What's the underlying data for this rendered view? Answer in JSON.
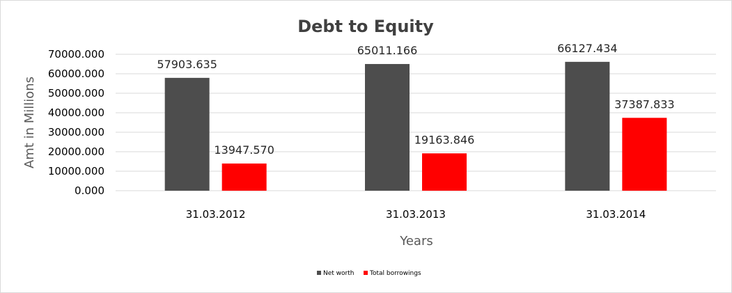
{
  "chart_data": {
    "type": "bar",
    "title": "Debt to Equity",
    "xlabel": "Years",
    "ylabel": "Amt in Millions",
    "categories": [
      "31.03.2012",
      "31.03.2013",
      "31.03.2014"
    ],
    "series": [
      {
        "name": "Net worth",
        "color": "#4d4d4d",
        "values": [
          57903.635,
          65011.166,
          66127.434
        ],
        "labels": [
          "57903.635",
          "65011.166",
          "66127.434"
        ]
      },
      {
        "name": "Total borrowings",
        "color": "#ff0000",
        "values": [
          13947.57,
          19163.846,
          37387.833
        ],
        "labels": [
          "13947.570",
          "19163.846",
          "37387.833"
        ]
      }
    ],
    "ylim": [
      0,
      70000
    ],
    "yticks": [
      0,
      10000,
      20000,
      30000,
      40000,
      50000,
      60000,
      70000
    ],
    "ytick_labels": [
      "0.000",
      "10000.000",
      "20000.000",
      "30000.000",
      "40000.000",
      "50000.000",
      "60000.000",
      "70000.000"
    ],
    "grid": true,
    "legend_position": "bottom"
  }
}
